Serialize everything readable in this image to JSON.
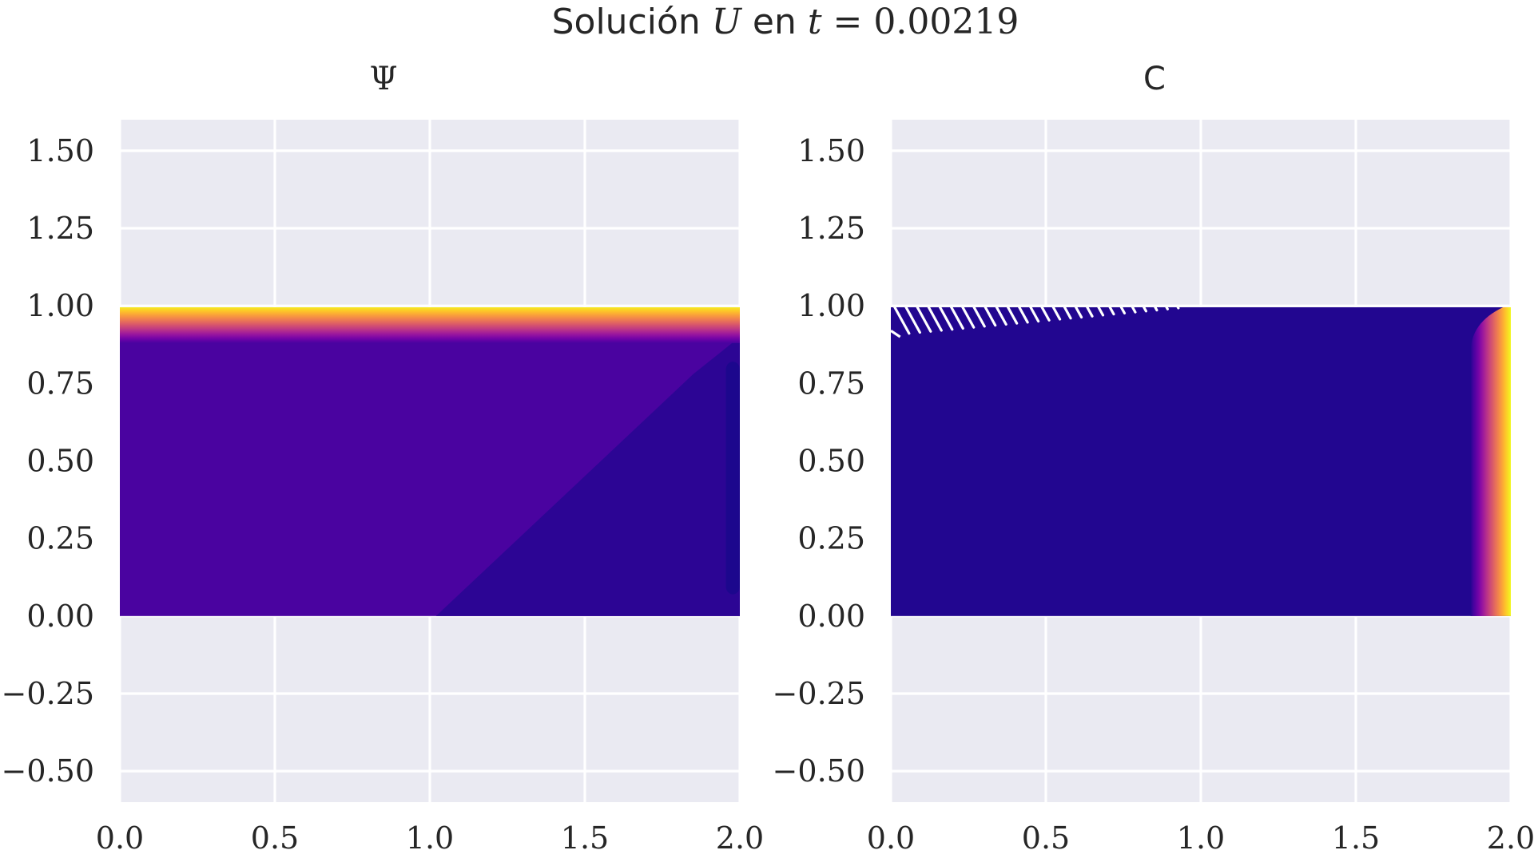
{
  "figure": {
    "suptitle": "Solución U en t = 0.00219",
    "suptitle_parts": {
      "word": "Solución",
      "var": "U",
      "mid": "en",
      "tvar": "t",
      "eq": "=",
      "tval": "0.00219"
    }
  },
  "colors": {
    "axes_bg": "#eaeaf2",
    "grid": "#ffffff",
    "text": "#262626",
    "colormap": "plasma",
    "plasma_stops": [
      "#0d0887",
      "#46039f",
      "#7201a8",
      "#9c179e",
      "#bd3786",
      "#d8576b",
      "#ed7953",
      "#fb9f3a",
      "#fdca26",
      "#f0f921"
    ]
  },
  "chart_data": [
    {
      "type": "heatmap",
      "title": "Ψ",
      "colormap": "plasma",
      "x_ticks": [
        "0.0",
        "0.5",
        "1.0",
        "1.5",
        "2.0"
      ],
      "y_ticks": [
        "1.50",
        "1.25",
        "1.00",
        "0.75",
        "0.50",
        "0.25",
        "0.00",
        "−0.25",
        "−0.50"
      ],
      "x_tick_values": [
        0,
        0.5,
        1.0,
        1.5,
        2.0
      ],
      "y_tick_values": [
        1.5,
        1.25,
        1.0,
        0.75,
        0.5,
        0.25,
        0.0,
        -0.25,
        -0.5
      ],
      "xlim": [
        0,
        2
      ],
      "ylim": [
        -0.6,
        1.6
      ],
      "grid": true,
      "domain": {
        "x": [
          0,
          2
        ],
        "y": [
          0,
          1
        ]
      },
      "fields": {
        "top_band_y": [
          0.88,
          1.0
        ],
        "top_band_level": [
          0.12,
          1.0
        ],
        "interior_level": 0.12,
        "lower_right_level": 0.06,
        "right_edge_level": 0.03
      }
    },
    {
      "type": "heatmap",
      "title": "C",
      "colormap": "plasma",
      "x_ticks": [
        "0.0",
        "0.5",
        "1.0",
        "1.5",
        "2.0"
      ],
      "y_ticks": [
        "1.50",
        "1.25",
        "1.00",
        "0.75",
        "0.50",
        "0.25",
        "0.00",
        "−0.25",
        "−0.50"
      ],
      "x_tick_values": [
        0,
        0.5,
        1.0,
        1.5,
        2.0
      ],
      "y_tick_values": [
        1.5,
        1.25,
        1.0,
        0.75,
        0.5,
        0.25,
        0.0,
        -0.25,
        -0.5
      ],
      "xlim": [
        0,
        2
      ],
      "ylim": [
        -0.6,
        1.6
      ],
      "grid": true,
      "domain": {
        "x": [
          0,
          2
        ],
        "y": [
          0,
          1
        ]
      },
      "fields": {
        "interior_level": 0.04,
        "right_band_x": [
          1.87,
          2.0
        ],
        "right_band_level": [
          0.04,
          1.0
        ],
        "top_left_hatch_x": [
          0,
          0.95
        ],
        "top_left_hatch_y": [
          0.9,
          1.0
        ]
      }
    }
  ]
}
